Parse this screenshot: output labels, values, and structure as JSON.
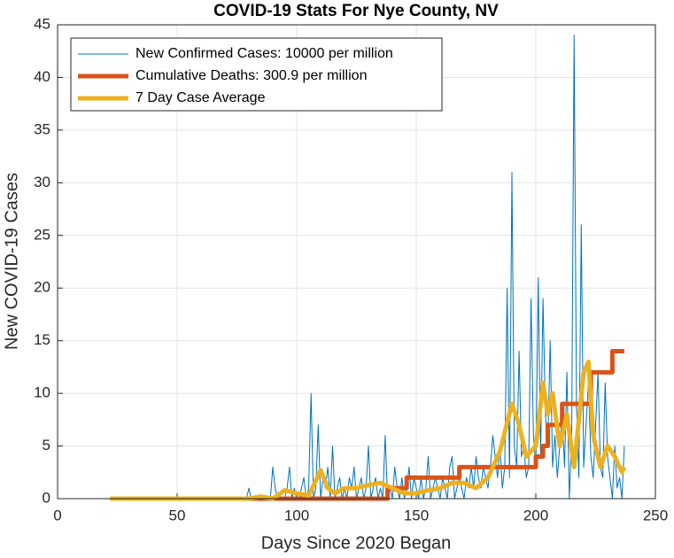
{
  "chart_data": {
    "type": "line",
    "title": "COVID-19 Stats For Nye County, NV",
    "x_label": "Days Since 2020 Began",
    "y_label": "New COVID-19 Cases",
    "xlim": [
      0,
      250
    ],
    "xticks": [
      0,
      50,
      100,
      150,
      200,
      250
    ],
    "ylim": [
      0,
      45
    ],
    "yticks": [
      0,
      5,
      10,
      15,
      20,
      25,
      30,
      35,
      40,
      45
    ],
    "grid": true,
    "legend": "upper left",
    "series": [
      {
        "name": "New Confirmed Cases: 10000 per million",
        "color": "#0072bd",
        "width": 1,
        "x": [
          22,
          78,
          79,
          80,
          81,
          82,
          83,
          84,
          85,
          86,
          87,
          88,
          89,
          90,
          91,
          92,
          93,
          94,
          95,
          96,
          97,
          98,
          99,
          100,
          101,
          102,
          103,
          104,
          105,
          106,
          107,
          108,
          109,
          110,
          111,
          112,
          113,
          114,
          115,
          116,
          117,
          118,
          119,
          120,
          121,
          122,
          123,
          124,
          125,
          126,
          127,
          128,
          129,
          130,
          131,
          132,
          133,
          134,
          135,
          136,
          137,
          138,
          139,
          140,
          141,
          142,
          143,
          144,
          145,
          146,
          147,
          148,
          149,
          150,
          151,
          152,
          153,
          154,
          155,
          156,
          157,
          158,
          159,
          160,
          161,
          162,
          163,
          164,
          165,
          166,
          167,
          168,
          169,
          170,
          171,
          172,
          173,
          174,
          175,
          176,
          177,
          178,
          179,
          180,
          181,
          182,
          183,
          184,
          185,
          186,
          187,
          188,
          189,
          190,
          191,
          192,
          193,
          194,
          195,
          196,
          197,
          198,
          199,
          200,
          201,
          202,
          203,
          204,
          205,
          206,
          207,
          208,
          209,
          210,
          211,
          212,
          213,
          214,
          215,
          216,
          217,
          218,
          219,
          220,
          221,
          222,
          223,
          224,
          225,
          226,
          227,
          228,
          229,
          230,
          231,
          232,
          233,
          234,
          235,
          236,
          237
        ],
        "values": [
          0,
          0,
          0,
          1,
          0,
          0,
          0,
          0,
          0,
          0,
          0,
          0,
          0,
          3,
          1,
          0,
          0,
          0,
          0,
          1,
          3,
          0,
          1,
          0,
          0,
          1,
          2,
          0,
          1,
          10,
          0,
          1,
          7,
          0,
          2,
          1,
          3,
          0,
          5,
          0,
          1,
          2,
          0,
          1,
          0,
          2,
          1,
          3,
          0,
          1,
          2,
          0,
          1,
          5,
          0,
          1,
          2,
          0,
          1,
          0,
          6,
          0,
          1,
          0,
          3,
          1,
          0,
          2,
          0,
          1,
          3,
          0,
          2,
          1,
          0,
          2,
          0,
          1,
          4,
          0,
          1,
          2,
          1,
          0,
          2,
          1,
          0,
          3,
          4,
          0,
          1,
          2,
          1,
          0,
          2,
          1,
          3,
          1,
          4,
          2,
          1,
          3,
          2,
          1,
          3,
          6,
          4,
          2,
          5,
          1,
          3,
          20,
          2,
          31,
          5,
          3,
          14,
          4,
          5,
          2,
          3,
          19,
          6,
          3,
          21,
          4,
          19,
          8,
          5,
          15,
          3,
          6,
          2,
          5,
          8,
          3,
          12,
          0,
          6,
          44,
          9,
          2,
          26,
          3,
          7,
          11,
          4,
          2,
          7,
          12,
          3,
          2,
          11,
          4,
          2,
          0,
          5,
          1,
          2,
          0,
          5
        ]
      },
      {
        "name": "Cumulative Deaths: 300.9 per million",
        "color": "#d95319",
        "width": 5,
        "x": [
          22,
          138,
          138,
          146,
          146,
          168,
          168,
          200,
          200,
          203,
          203,
          205,
          205,
          211,
          211,
          223,
          223,
          232,
          232,
          237
        ],
        "values": [
          0,
          0,
          1,
          1,
          2,
          2,
          3,
          3,
          4,
          4,
          5,
          5,
          7,
          7,
          9,
          9,
          12,
          12,
          14,
          14
        ]
      },
      {
        "name": "7 Day Case Average",
        "color": "#edb120",
        "width": 5,
        "x": [
          22,
          80,
          85,
          90,
          95,
          100,
          105,
          110,
          113,
          116,
          120,
          125,
          130,
          135,
          140,
          145,
          150,
          155,
          160,
          165,
          170,
          175,
          180,
          185,
          190,
          193,
          196,
          200,
          203,
          205,
          207,
          210,
          213,
          216,
          220,
          222,
          224,
          227,
          230,
          233,
          236,
          237
        ],
        "values": [
          0,
          0,
          0.2,
          0,
          0.8,
          0.5,
          0.3,
          2.7,
          1,
          0.5,
          1,
          1,
          1.3,
          1.5,
          1,
          0.5,
          0.5,
          0.8,
          1,
          1.5,
          1.5,
          1,
          2,
          4.5,
          9,
          7,
          4,
          5,
          11,
          8,
          10,
          5,
          8,
          3,
          12,
          13,
          6,
          3,
          5,
          4,
          2.5,
          3
        ]
      }
    ]
  }
}
